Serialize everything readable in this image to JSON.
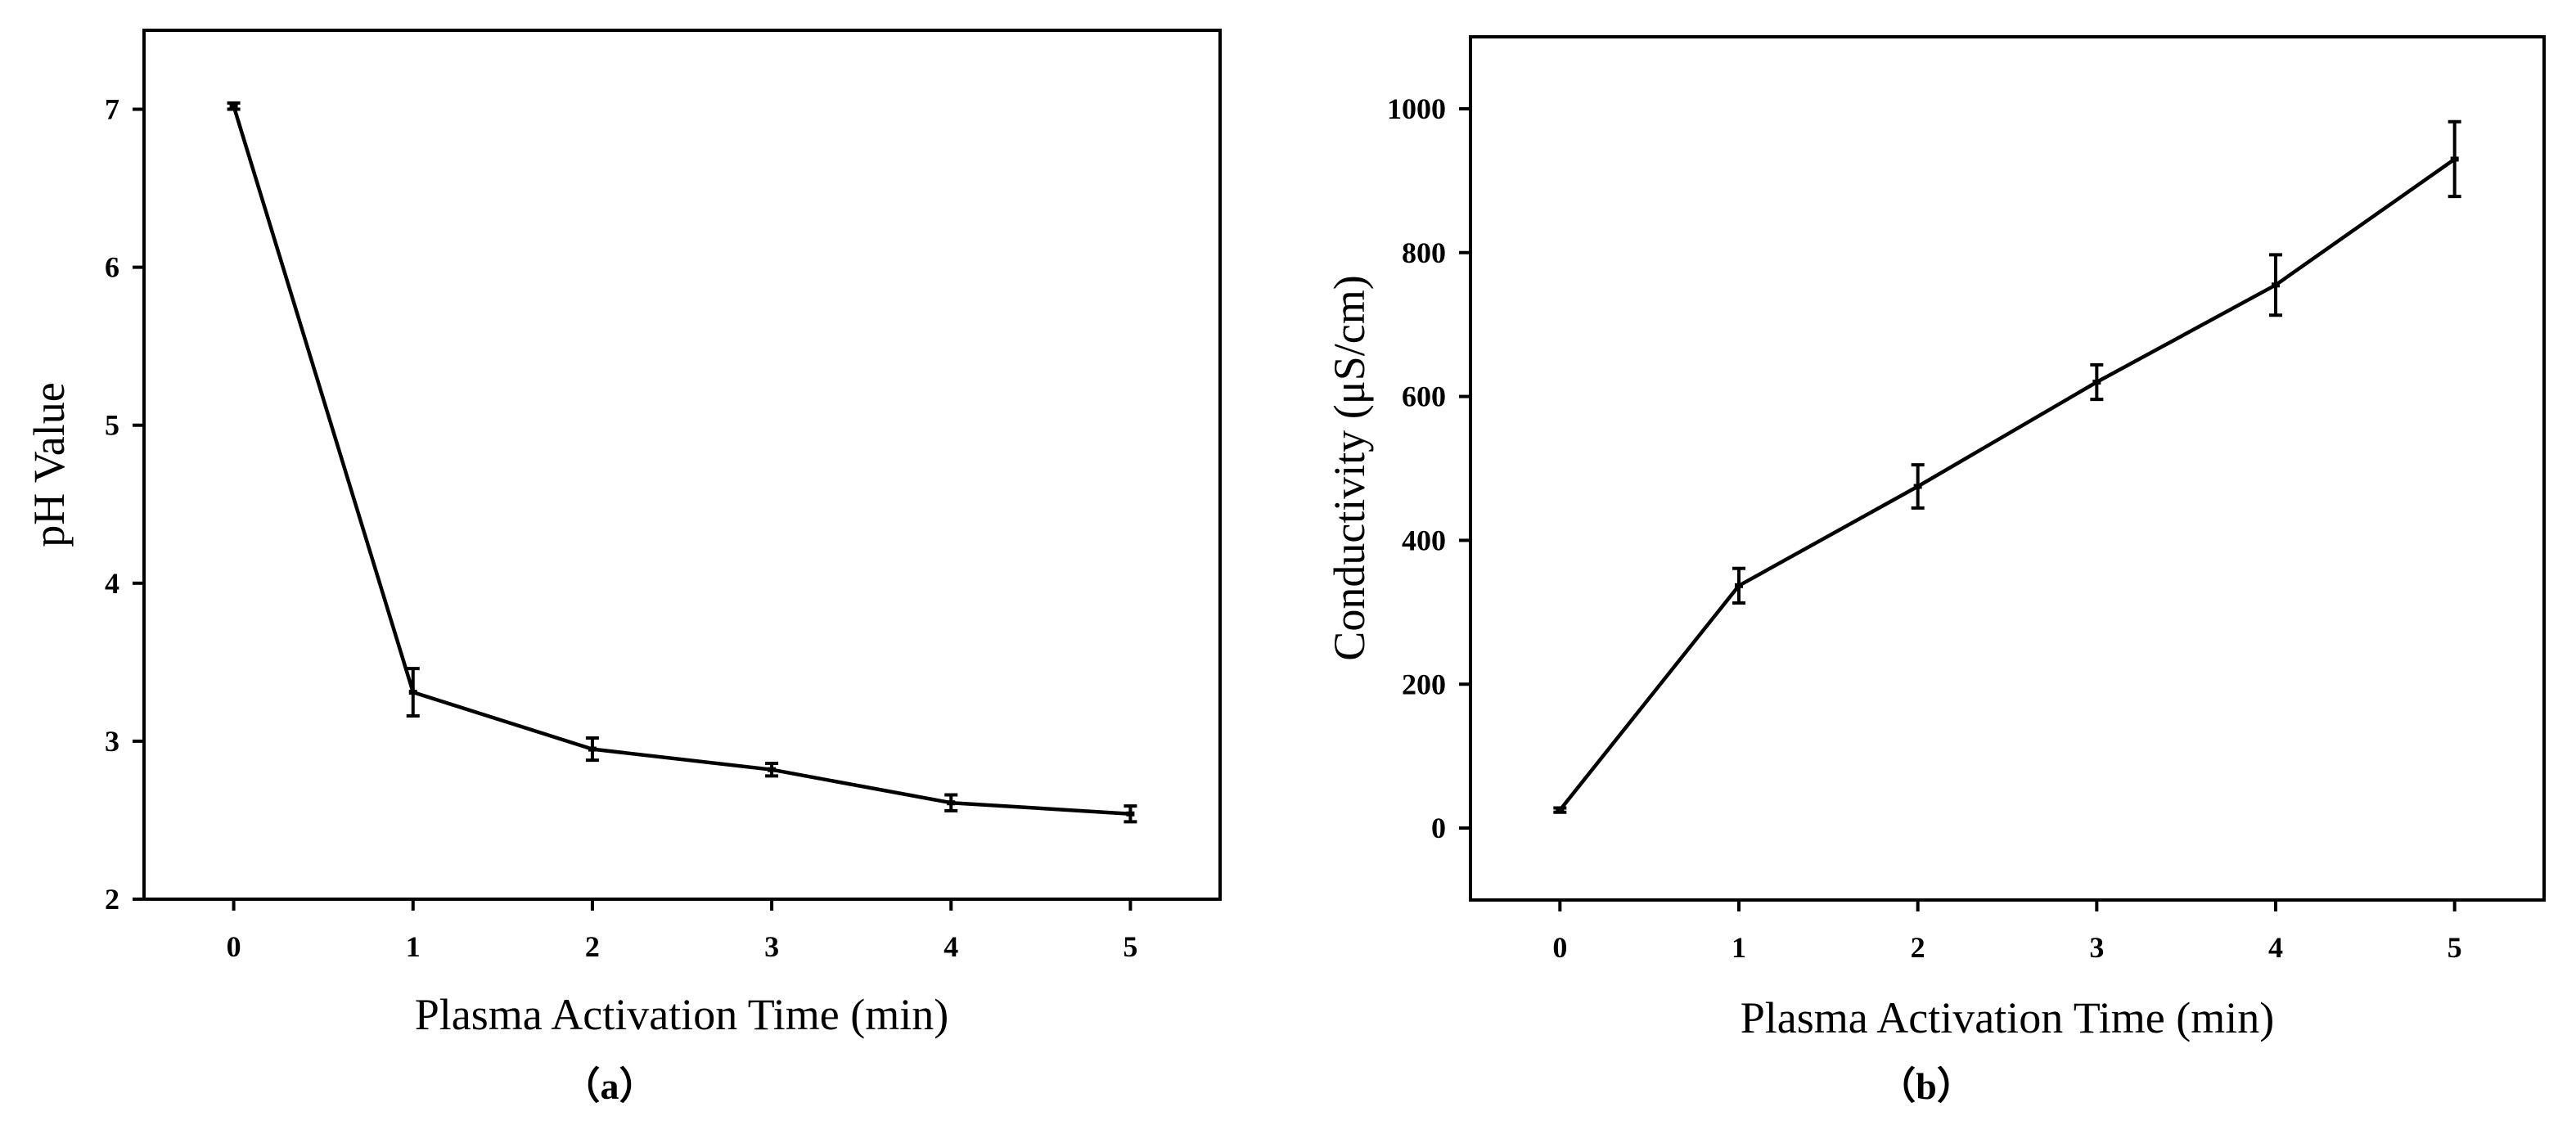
{
  "chart_data": [
    {
      "type": "line",
      "panel_label": "（a）",
      "title": "",
      "xlabel": "Plasma Activation Time (min)",
      "ylabel": "pH Value",
      "xlim": [
        -0.5,
        5.5
      ],
      "ylim": [
        2,
        7.5
      ],
      "xticks": [
        0,
        1,
        2,
        3,
        4,
        5
      ],
      "yticks": [
        2,
        3,
        4,
        5,
        6,
        7
      ],
      "x": [
        0,
        1,
        2,
        3,
        4,
        5
      ],
      "series": [
        {
          "name": "pH",
          "values": [
            7.02,
            3.31,
            2.95,
            2.82,
            2.61,
            2.54
          ],
          "errors": [
            0.02,
            0.15,
            0.07,
            0.04,
            0.05,
            0.05
          ]
        }
      ],
      "grid": false,
      "legend": "none"
    },
    {
      "type": "line",
      "panel_label": "（b）",
      "title": "",
      "xlabel": "Plasma Activation Time (min)",
      "ylabel": "Conductivity (μS/cm)",
      "xlim": [
        -0.5,
        5.5
      ],
      "ylim": [
        -100,
        1100
      ],
      "xticks": [
        0,
        1,
        2,
        3,
        4,
        5
      ],
      "yticks": [
        0,
        200,
        400,
        600,
        800,
        1000
      ],
      "x": [
        0,
        1,
        2,
        3,
        4,
        5
      ],
      "series": [
        {
          "name": "Conductivity",
          "values": [
            25,
            337,
            475,
            620,
            755,
            930
          ],
          "errors": [
            3,
            24,
            30,
            24,
            42,
            52
          ]
        }
      ],
      "grid": false,
      "legend": "none"
    }
  ]
}
